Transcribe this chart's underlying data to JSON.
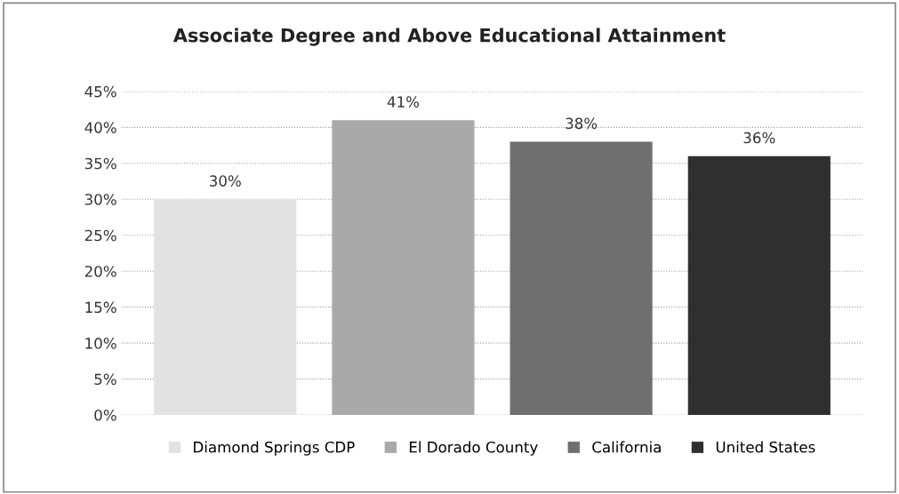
{
  "chart_data": {
    "type": "bar",
    "title": "Associate Degree and Above Educational Attainment",
    "categories": [
      null
    ],
    "series": [
      {
        "name": "Diamond Springs CDP",
        "color": "#e2e2e2",
        "values": [
          30
        ],
        "value_labels": [
          "30%"
        ]
      },
      {
        "name": "El Dorado County",
        "color": "#a9a9a9",
        "values": [
          41
        ],
        "value_labels": [
          "41%"
        ]
      },
      {
        "name": "California",
        "color": "#6f6f6f",
        "values": [
          38
        ],
        "value_labels": [
          "38%"
        ]
      },
      {
        "name": "United States",
        "color": "#2f2f2f",
        "values": [
          36
        ],
        "value_labels": [
          "36%"
        ]
      }
    ],
    "ylim": [
      0,
      45
    ],
    "yticks": [
      {
        "value": 0,
        "label": "0%"
      },
      {
        "value": 5,
        "label": "5%"
      },
      {
        "value": 10,
        "label": "10%"
      },
      {
        "value": 15,
        "label": "15%"
      },
      {
        "value": 20,
        "label": "20%"
      },
      {
        "value": 25,
        "label": "25%"
      },
      {
        "value": 30,
        "label": "30%"
      },
      {
        "value": 35,
        "label": "35%"
      },
      {
        "value": 40,
        "label": "40%"
      },
      {
        "value": 45,
        "label": "45%"
      }
    ],
    "grid": "y",
    "legend": "bottom",
    "tick_labels": "y"
  }
}
